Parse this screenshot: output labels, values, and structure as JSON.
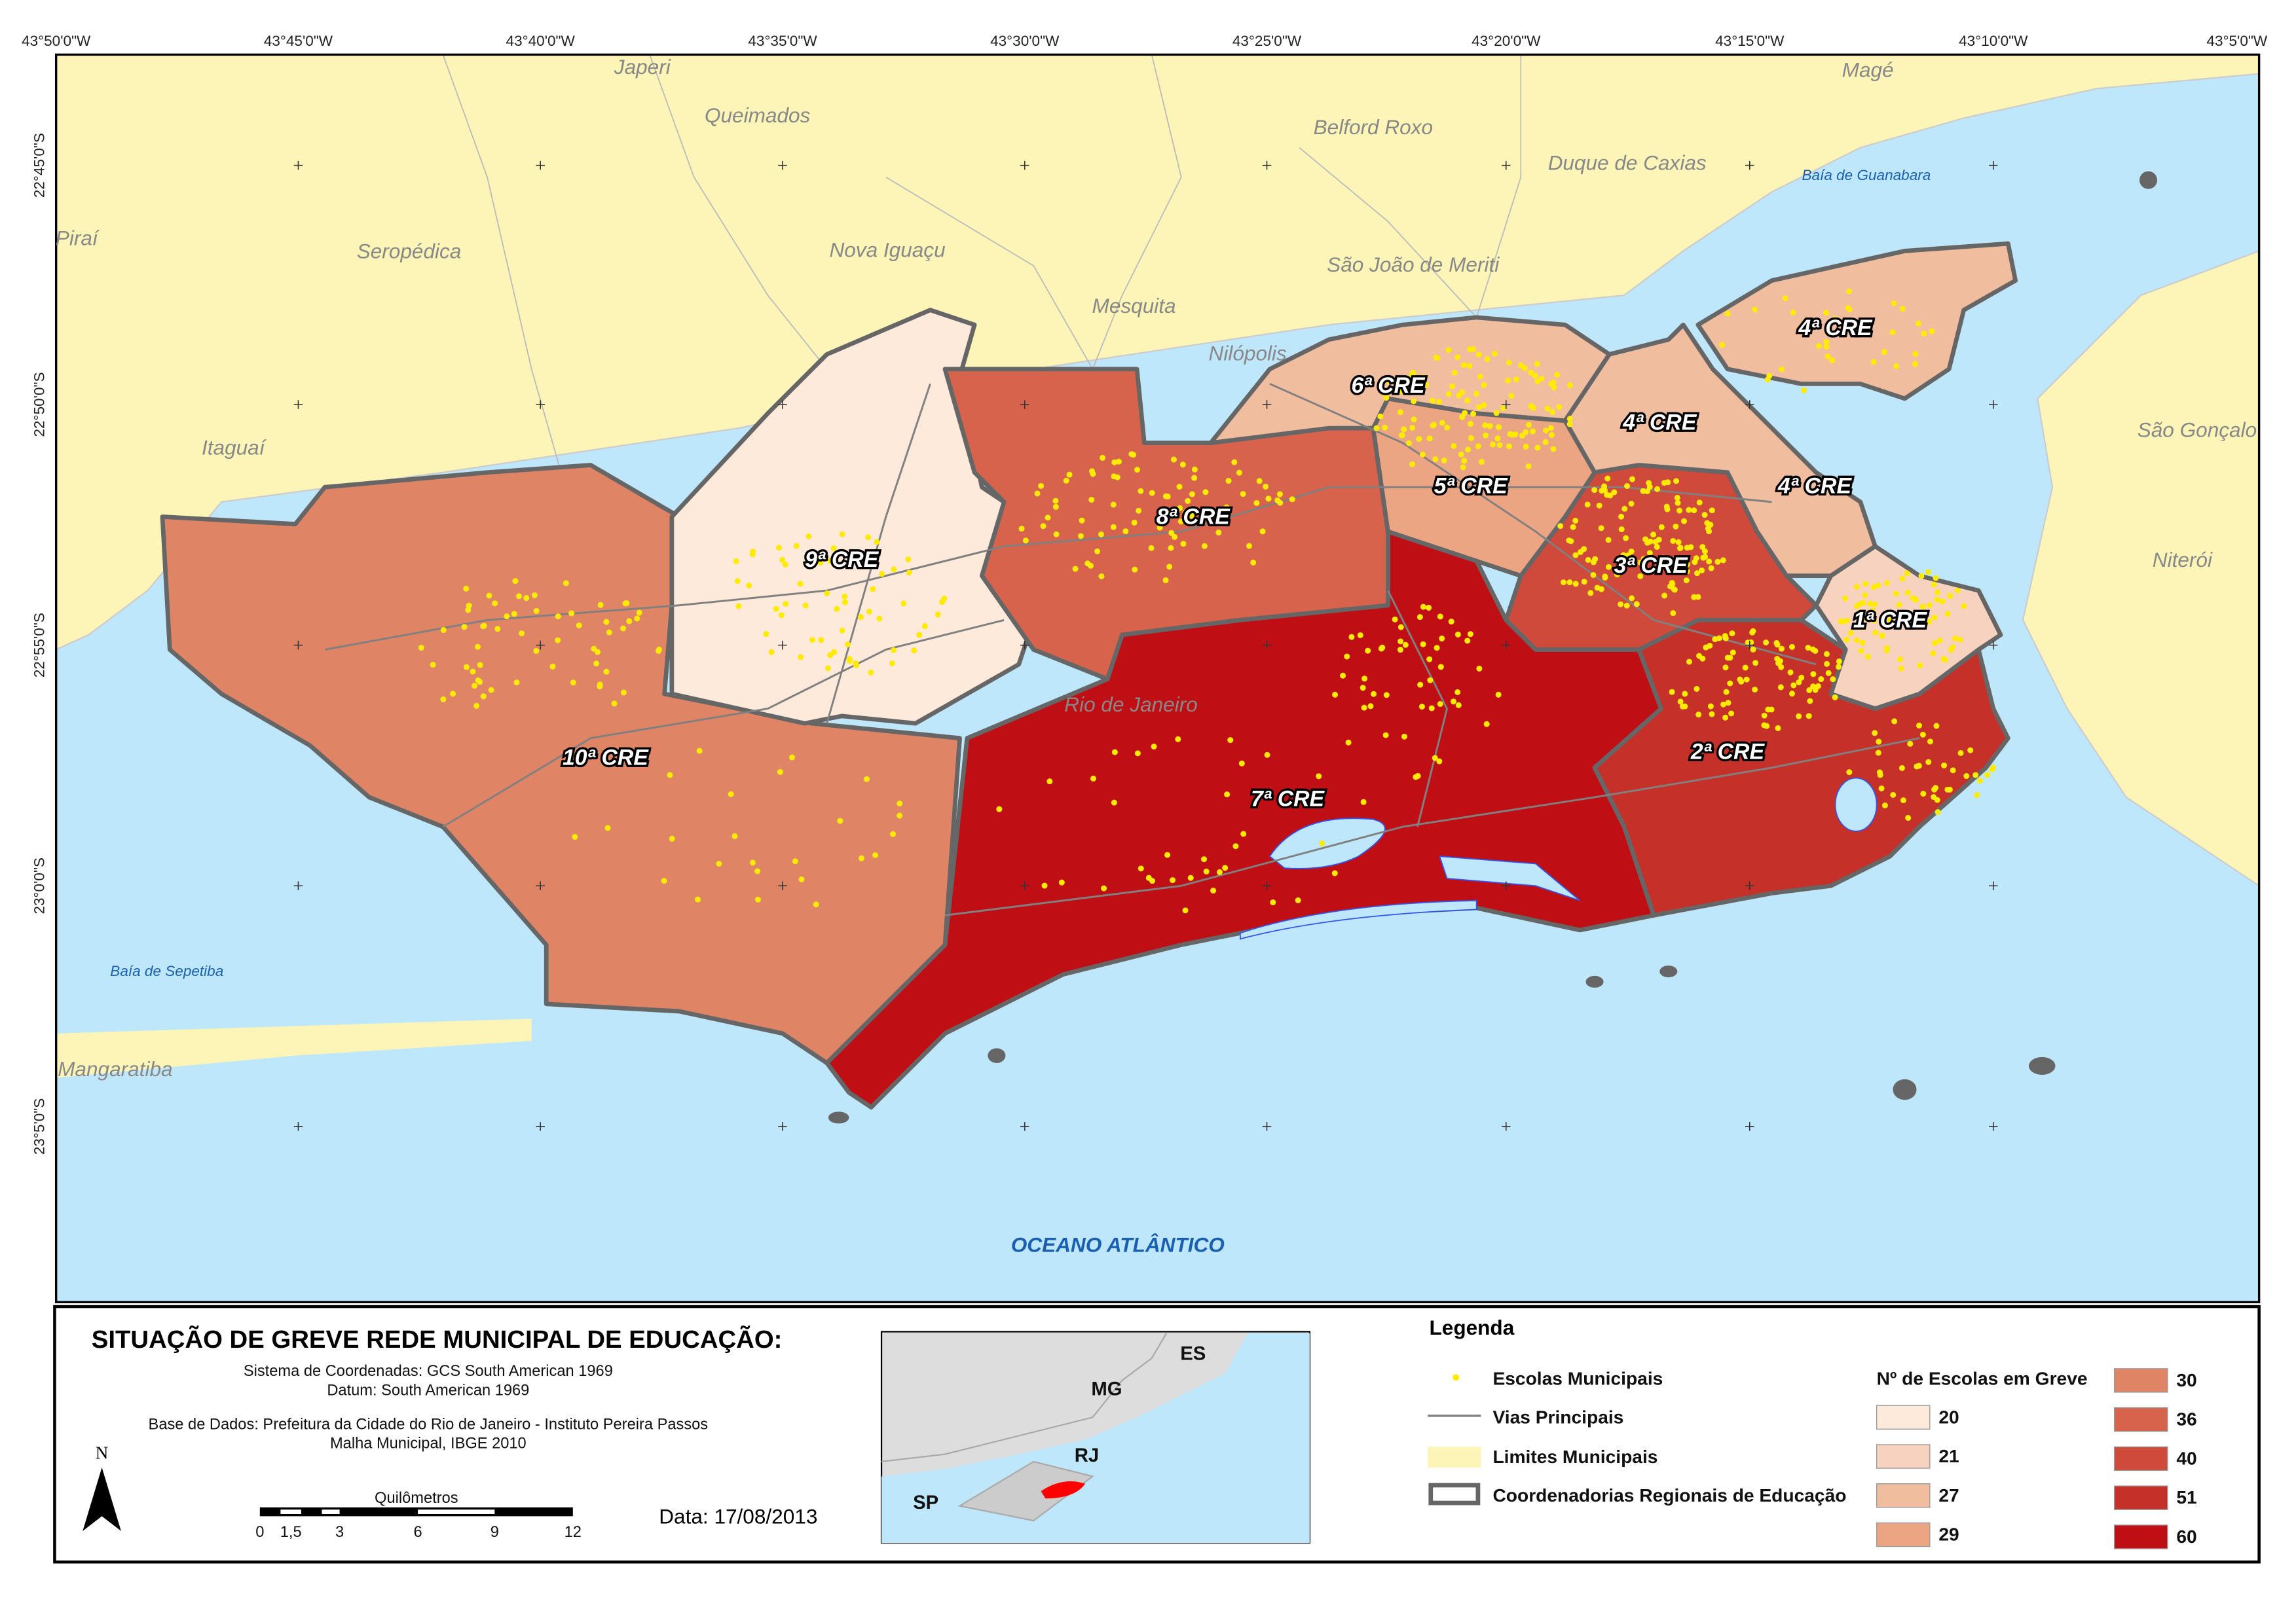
{
  "map": {
    "top_labels": [
      "43°50'0\"W",
      "43°45'0\"W",
      "43°40'0\"W",
      "43°35'0\"W",
      "43°30'0\"W",
      "43°25'0\"W",
      "43°20'0\"W",
      "43°15'0\"W",
      "43°10'0\"W",
      "43°5'0\"W"
    ],
    "left_labels": [
      "22°45'0\"S",
      "22°50'0\"S",
      "22°55'0\"S",
      "23°0'0\"S",
      "23°5'0\"S"
    ],
    "places": [
      "Japeri",
      "Queimados",
      "Belford Roxo",
      "Duque de Caxias",
      "Magé",
      "Piraí",
      "Seropédica",
      "Nova Iguaçu",
      "São João de Meriti",
      "Mesquita",
      "Nilópolis",
      "Itaguaí",
      "São Gonçalo",
      "Niterói",
      "Rio de Janeiro",
      "Mangaratiba"
    ],
    "water": [
      "Baía de Guanabara",
      "Baía de Sepetiba",
      "OCEANO ATLÂNTICO"
    ],
    "cre_labels": [
      "9ª CRE",
      "8ª CRE",
      "10ª CRE",
      "7ª CRE",
      "6ª CRE",
      "4ª CRE",
      "5ª CRE",
      "4ª CRE",
      "3ª CRE",
      "1ª CRE",
      "2ª CRE",
      "4ª CRE"
    ]
  },
  "footer": {
    "title": "SITUAÇÃO DE GREVE REDE MUNICIPAL DE EDUCAÇÃO:",
    "coord_system": "Sistema de Coordenadas: GCS South American 1969",
    "datum": "Datum: South American 1969",
    "base": "Base de Dados: Prefeitura da Cidade do Rio de Janeiro - Instituto Pereira Passos",
    "malha": "Malha Municipal, IBGE 2010",
    "north": "N",
    "scale_title": "Quilômetros",
    "scale_ticks": [
      "0",
      "1,5",
      "3",
      "6",
      "9",
      "12"
    ],
    "date": "Data: 17/08/2013",
    "inset": [
      "MG",
      "ES",
      "RJ",
      "SP"
    ]
  },
  "legend": {
    "title": "Legenda",
    "items": [
      "Escolas Municipais",
      "Vias Principais",
      "Limites Municipais",
      "Coordenadorias Regionais de Educação"
    ],
    "classes_title": "Nº de Escolas em Greve",
    "classes": [
      {
        "value": 20,
        "color": "#fdeadb"
      },
      {
        "value": 21,
        "color": "#f7d3bf"
      },
      {
        "value": 27,
        "color": "#f1bd9f"
      },
      {
        "value": 29,
        "color": "#eba583"
      },
      {
        "value": 30,
        "color": "#e08466"
      },
      {
        "value": 36,
        "color": "#d7634c"
      },
      {
        "value": 40,
        "color": "#cf4a3a"
      },
      {
        "value": 51,
        "color": "#c53128"
      },
      {
        "value": 60,
        "color": "#bf0f14"
      }
    ]
  }
}
